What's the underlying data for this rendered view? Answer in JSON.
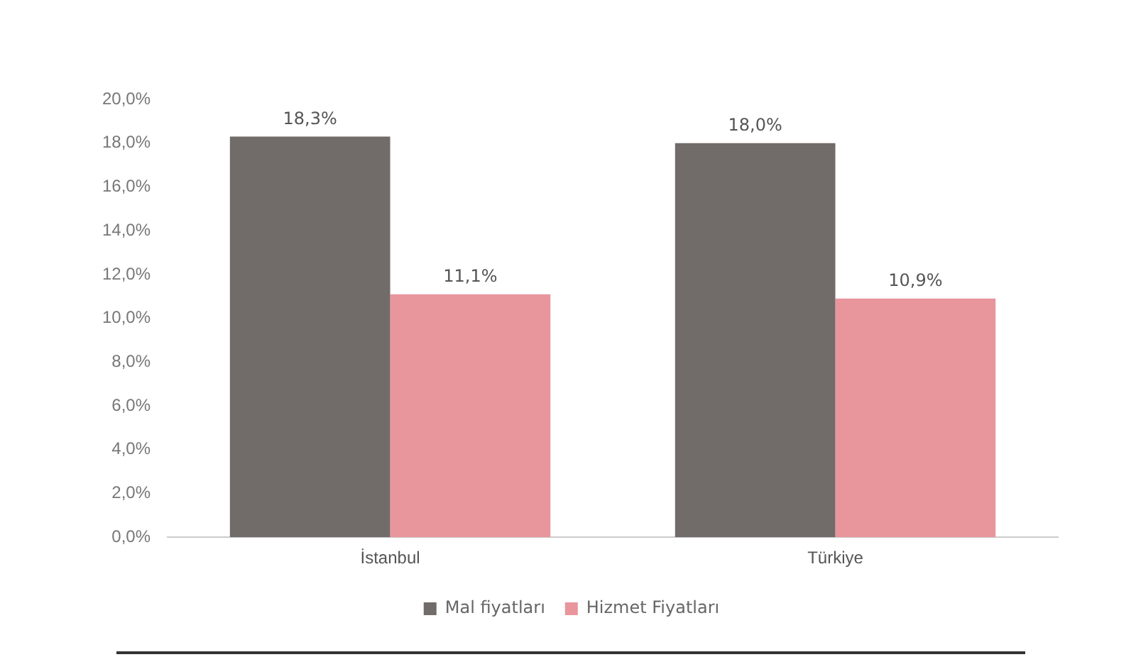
{
  "chart_data": {
    "type": "bar",
    "categories": [
      "İstanbul",
      "Türkiye"
    ],
    "series": [
      {
        "name": "Mal fiyatları",
        "color": "#716b69",
        "values": [
          18.3,
          18.0
        ],
        "value_labels": [
          "18,3%",
          "18,0%"
        ]
      },
      {
        "name": "Hizmet Fiyatları",
        "color": "#e8959c",
        "values": [
          11.1,
          10.9
        ],
        "value_labels": [
          "11,1%",
          "10,9%"
        ]
      }
    ],
    "ylim": [
      0,
      20
    ],
    "yticks": [
      {
        "value": 0,
        "label": "0,0%"
      },
      {
        "value": 2,
        "label": "2,0%"
      },
      {
        "value": 4,
        "label": "4,0%"
      },
      {
        "value": 6,
        "label": "6,0%"
      },
      {
        "value": 8,
        "label": "8,0%"
      },
      {
        "value": 10,
        "label": "10,0%"
      },
      {
        "value": 12,
        "label": "12,0%"
      },
      {
        "value": 14,
        "label": "14,0%"
      },
      {
        "value": 16,
        "label": "16,0%"
      },
      {
        "value": 18,
        "label": "18,0%"
      },
      {
        "value": 20,
        "label": "20,0%"
      }
    ],
    "grid": false,
    "legend": "bottom"
  }
}
